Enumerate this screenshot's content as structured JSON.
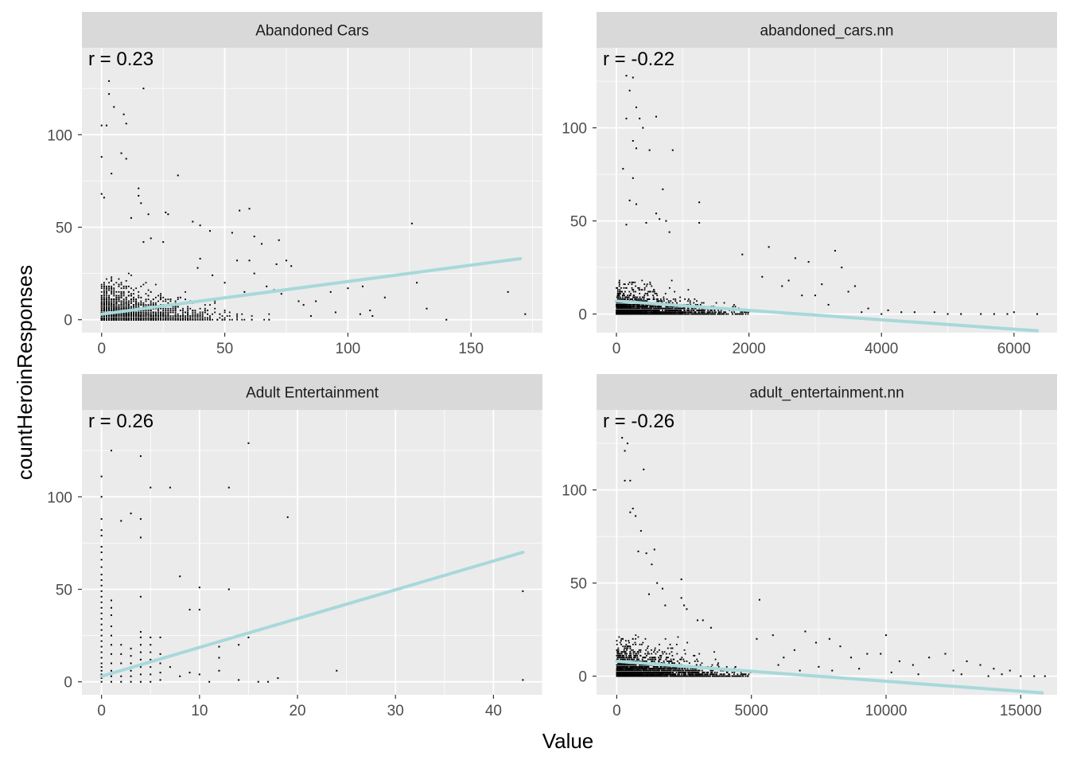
{
  "figure": {
    "xlabel": "Value",
    "ylabel": "countHeroinResponses"
  },
  "colors": {
    "panel_bg": "#EBEBEB",
    "strip_bg": "#D9D9D9",
    "grid": "#FFFFFF",
    "points": "#000000",
    "fit_line": "#A8D8DA",
    "tick_text": "#4D4D4D"
  },
  "chart_data": [
    {
      "type": "scatter",
      "title": "Abandoned Cars",
      "annotation": "r = 0.23",
      "xlim": [
        -8,
        179
      ],
      "ylim": [
        -7,
        147
      ],
      "xticks": [
        0,
        50,
        100,
        150
      ],
      "yticks": [
        0,
        50,
        100
      ],
      "fit": {
        "x0": 0,
        "y0": 3,
        "x1": 170,
        "y1": 33
      },
      "cloud": {
        "x_max": 70,
        "y_max": 25,
        "decay_x": 12,
        "decay_y": 5
      },
      "points": [
        [
          0,
          88
        ],
        [
          0,
          105
        ],
        [
          2,
          105
        ],
        [
          3,
          129
        ],
        [
          3,
          122
        ],
        [
          5,
          115
        ],
        [
          9,
          111
        ],
        [
          10,
          106
        ],
        [
          17,
          125
        ],
        [
          8,
          90
        ],
        [
          10,
          87
        ],
        [
          4,
          79
        ],
        [
          15,
          71
        ],
        [
          15,
          67
        ],
        [
          16,
          63
        ],
        [
          0,
          68
        ],
        [
          1,
          66
        ],
        [
          12,
          55
        ],
        [
          19,
          57
        ],
        [
          26,
          58
        ],
        [
          31,
          78
        ],
        [
          27,
          57
        ],
        [
          37,
          53
        ],
        [
          40,
          51
        ],
        [
          44,
          48
        ],
        [
          56,
          59
        ],
        [
          60,
          60
        ],
        [
          53,
          47
        ],
        [
          62,
          45
        ],
        [
          65,
          41
        ],
        [
          72,
          43
        ],
        [
          55,
          32
        ],
        [
          60,
          32
        ],
        [
          62,
          25
        ],
        [
          71,
          30
        ],
        [
          75,
          32
        ],
        [
          77,
          29
        ],
        [
          20,
          44
        ],
        [
          25,
          42
        ],
        [
          17,
          42
        ],
        [
          40,
          33
        ],
        [
          39,
          28
        ],
        [
          45,
          24
        ],
        [
          50,
          20
        ],
        [
          58,
          15
        ],
        [
          67,
          18
        ],
        [
          70,
          16
        ],
        [
          73,
          14
        ],
        [
          80,
          10
        ],
        [
          82,
          8
        ],
        [
          87,
          10
        ],
        [
          93,
          15
        ],
        [
          100,
          17
        ],
        [
          106,
          18
        ],
        [
          109,
          5
        ],
        [
          115,
          12
        ],
        [
          126,
          52
        ],
        [
          128,
          20
        ],
        [
          132,
          6
        ],
        [
          165,
          15
        ],
        [
          172,
          3
        ],
        [
          85,
          2
        ],
        [
          95,
          4
        ],
        [
          105,
          3
        ],
        [
          110,
          2
        ],
        [
          140,
          0
        ]
      ]
    },
    {
      "type": "scatter",
      "title": "abandoned_cars.nn",
      "annotation": "r = -0.22",
      "xlim": [
        -300,
        6650
      ],
      "ylim": [
        -10,
        143
      ],
      "xticks": [
        0,
        2000,
        4000,
        6000
      ],
      "yticks": [
        0,
        50,
        100
      ],
      "fit": {
        "x0": 0,
        "y0": 7,
        "x1": 6350,
        "y1": -9
      },
      "cloud": {
        "x_max": 2000,
        "y_max": 18,
        "decay_x": 450,
        "decay_y": 4
      },
      "points": [
        [
          150,
          128
        ],
        [
          250,
          127
        ],
        [
          200,
          120
        ],
        [
          300,
          111
        ],
        [
          150,
          105
        ],
        [
          350,
          105
        ],
        [
          400,
          100
        ],
        [
          600,
          106
        ],
        [
          250,
          93
        ],
        [
          300,
          89
        ],
        [
          500,
          88
        ],
        [
          850,
          88
        ],
        [
          100,
          78
        ],
        [
          250,
          73
        ],
        [
          700,
          67
        ],
        [
          200,
          61
        ],
        [
          300,
          59
        ],
        [
          1250,
          60
        ],
        [
          600,
          54
        ],
        [
          650,
          51
        ],
        [
          750,
          50
        ],
        [
          450,
          49
        ],
        [
          150,
          48
        ],
        [
          800,
          44
        ],
        [
          1250,
          49
        ],
        [
          1900,
          32
        ],
        [
          2300,
          36
        ],
        [
          2700,
          30
        ],
        [
          2900,
          28
        ],
        [
          3300,
          34
        ],
        [
          3400,
          25
        ],
        [
          2600,
          18
        ],
        [
          3100,
          16
        ],
        [
          3600,
          15
        ],
        [
          3500,
          12
        ],
        [
          3000,
          10
        ],
        [
          2200,
          20
        ],
        [
          2500,
          15
        ],
        [
          2800,
          10
        ],
        [
          3200,
          5
        ],
        [
          3800,
          3
        ],
        [
          4100,
          2
        ],
        [
          4500,
          1
        ],
        [
          5000,
          0
        ],
        [
          5500,
          0
        ],
        [
          5900,
          0
        ],
        [
          6350,
          0
        ],
        [
          4800,
          1
        ],
        [
          5200,
          0
        ],
        [
          5700,
          0
        ],
        [
          4300,
          1
        ],
        [
          4000,
          0
        ],
        [
          3700,
          1
        ],
        [
          6000,
          1
        ]
      ]
    },
    {
      "type": "scatter",
      "title": "Adult Entertainment",
      "annotation": "r = 0.26",
      "xlim": [
        -2,
        45
      ],
      "ylim": [
        -7,
        147
      ],
      "xticks": [
        0,
        10,
        20,
        30,
        40
      ],
      "yticks": [
        0,
        50,
        100
      ],
      "fit": {
        "x0": 0,
        "y0": 3,
        "x1": 43,
        "y1": 70
      },
      "cloud": null,
      "points": [
        [
          0,
          111
        ],
        [
          0,
          100
        ],
        [
          0,
          88
        ],
        [
          0,
          82
        ],
        [
          0,
          79
        ],
        [
          0,
          73
        ],
        [
          0,
          70
        ],
        [
          0,
          66
        ],
        [
          0,
          62
        ],
        [
          0,
          58
        ],
        [
          0,
          55
        ],
        [
          0,
          52
        ],
        [
          0,
          49
        ],
        [
          0,
          46
        ],
        [
          0,
          43
        ],
        [
          0,
          40
        ],
        [
          0,
          37
        ],
        [
          0,
          34
        ],
        [
          0,
          31
        ],
        [
          0,
          28
        ],
        [
          0,
          25
        ],
        [
          0,
          22
        ],
        [
          0,
          19
        ],
        [
          0,
          16
        ],
        [
          0,
          13
        ],
        [
          0,
          10
        ],
        [
          0,
          8
        ],
        [
          0,
          6
        ],
        [
          0,
          4
        ],
        [
          0,
          2
        ],
        [
          0,
          0
        ],
        [
          1,
          125
        ],
        [
          2,
          87
        ],
        [
          3,
          91
        ],
        [
          4,
          122
        ],
        [
          4,
          88
        ],
        [
          4,
          78
        ],
        [
          5,
          105
        ],
        [
          7,
          105
        ],
        [
          9,
          39
        ],
        [
          10,
          51
        ],
        [
          10,
          39
        ],
        [
          13,
          105
        ],
        [
          13,
          50
        ],
        [
          15,
          129
        ],
        [
          19,
          89
        ],
        [
          8,
          57
        ],
        [
          1,
          44
        ],
        [
          1,
          40
        ],
        [
          1,
          36
        ],
        [
          1,
          30
        ],
        [
          1,
          25
        ],
        [
          1,
          20
        ],
        [
          1,
          15
        ],
        [
          1,
          10
        ],
        [
          1,
          6
        ],
        [
          1,
          3
        ],
        [
          1,
          0
        ],
        [
          2,
          20
        ],
        [
          2,
          15
        ],
        [
          2,
          10
        ],
        [
          2,
          6
        ],
        [
          2,
          3
        ],
        [
          2,
          0
        ],
        [
          3,
          18
        ],
        [
          3,
          14
        ],
        [
          3,
          10
        ],
        [
          3,
          6
        ],
        [
          3,
          3
        ],
        [
          3,
          0
        ],
        [
          4,
          27
        ],
        [
          4,
          24
        ],
        [
          4,
          20
        ],
        [
          4,
          16
        ],
        [
          4,
          12
        ],
        [
          4,
          8
        ],
        [
          4,
          4
        ],
        [
          4,
          0
        ],
        [
          5,
          24
        ],
        [
          5,
          20
        ],
        [
          5,
          16
        ],
        [
          5,
          12
        ],
        [
          5,
          8
        ],
        [
          5,
          4
        ],
        [
          5,
          0
        ],
        [
          4,
          46
        ],
        [
          6,
          24
        ],
        [
          6,
          15
        ],
        [
          6,
          10
        ],
        [
          6,
          5
        ],
        [
          6,
          1
        ],
        [
          8,
          3
        ],
        [
          9,
          5
        ],
        [
          10,
          4
        ],
        [
          12,
          19
        ],
        [
          12,
          13
        ],
        [
          12,
          6
        ],
        [
          14,
          20
        ],
        [
          14,
          1
        ],
        [
          15,
          24
        ],
        [
          16,
          0
        ],
        [
          17,
          0
        ],
        [
          18,
          2
        ],
        [
          24,
          6
        ],
        [
          43,
          49
        ],
        [
          43,
          1
        ],
        [
          11,
          0
        ],
        [
          7,
          8
        ]
      ]
    },
    {
      "type": "scatter",
      "title": "adult_entertainment.nn",
      "annotation": "r = -0.26",
      "xlim": [
        -750,
        16350
      ],
      "ylim": [
        -10,
        143
      ],
      "xticks": [
        0,
        5000,
        10000,
        15000
      ],
      "yticks": [
        0,
        50,
        100
      ],
      "fit": {
        "x0": 0,
        "y0": 8,
        "x1": 15800,
        "y1": -9
      },
      "cloud": {
        "x_max": 5000,
        "y_max": 22,
        "decay_x": 1300,
        "decay_y": 5
      },
      "points": [
        [
          200,
          128
        ],
        [
          300,
          121
        ],
        [
          400,
          125
        ],
        [
          500,
          105
        ],
        [
          300,
          105
        ],
        [
          500,
          88
        ],
        [
          700,
          86
        ],
        [
          600,
          90
        ],
        [
          900,
          78
        ],
        [
          1000,
          111
        ],
        [
          800,
          67
        ],
        [
          1100,
          66
        ],
        [
          1400,
          68
        ],
        [
          1300,
          60
        ],
        [
          1500,
          50
        ],
        [
          1700,
          47
        ],
        [
          1200,
          44
        ],
        [
          1800,
          38
        ],
        [
          2400,
          52
        ],
        [
          2400,
          42
        ],
        [
          2500,
          38
        ],
        [
          2600,
          36
        ],
        [
          3000,
          30
        ],
        [
          3200,
          30
        ],
        [
          3500,
          26
        ],
        [
          5300,
          41
        ],
        [
          5200,
          20
        ],
        [
          5800,
          22
        ],
        [
          6200,
          10
        ],
        [
          6600,
          14
        ],
        [
          7000,
          24
        ],
        [
          7400,
          18
        ],
        [
          7900,
          20
        ],
        [
          8300,
          16
        ],
        [
          8700,
          10
        ],
        [
          9300,
          12
        ],
        [
          9800,
          12
        ],
        [
          10000,
          22
        ],
        [
          10500,
          8
        ],
        [
          11000,
          6
        ],
        [
          11600,
          10
        ],
        [
          12200,
          12
        ],
        [
          12500,
          3
        ],
        [
          13000,
          8
        ],
        [
          13500,
          6
        ],
        [
          14000,
          4
        ],
        [
          14600,
          3
        ],
        [
          15000,
          0
        ],
        [
          15500,
          0
        ],
        [
          15900,
          0
        ],
        [
          9000,
          4
        ],
        [
          10200,
          2
        ],
        [
          11200,
          1
        ],
        [
          12800,
          1
        ],
        [
          13800,
          0
        ],
        [
          14300,
          1
        ],
        [
          8000,
          3
        ],
        [
          7500,
          5
        ],
        [
          6800,
          3
        ],
        [
          6000,
          6
        ]
      ]
    }
  ]
}
